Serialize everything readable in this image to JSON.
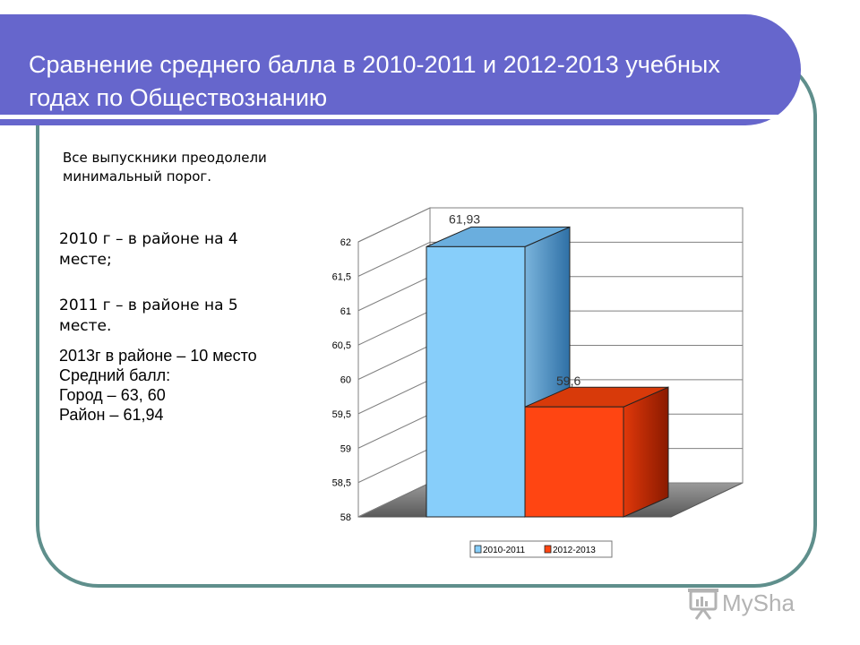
{
  "slide": {
    "title": "Сравнение среднего балла в 2010-2011 и 2012-2013 учебных годах по Обществознанию",
    "note": "Все выпускники преодолели минимальный порог.",
    "paragraph1": "2010 г – в районе на 4 месте;",
    "paragraph2": "2011 г – в районе на 5 месте.",
    "lines": [
      "2013г в районе – 10 место",
      "Средний балл:",
      "Город – 63, 60",
      "Район – 61,94"
    ]
  },
  "colors": {
    "title_bar": "#6666cc",
    "frame": "#5f8f8c",
    "series1": "#87cefa",
    "series2": "#ff4512"
  },
  "chart_data": {
    "type": "bar",
    "categories": [
      ""
    ],
    "series": [
      {
        "name": "2010-2011",
        "values": [
          61.93
        ],
        "label": "61,93"
      },
      {
        "name": "2012-2013",
        "values": [
          59.6
        ],
        "label": "59,6"
      }
    ],
    "ylim": [
      58,
      62
    ],
    "yticks": [
      "58",
      "58,5",
      "59",
      "59,5",
      "60",
      "60,5",
      "61",
      "61,5",
      "62"
    ],
    "grid": true,
    "legend_position": "bottom",
    "style": "3d"
  },
  "watermark": {
    "text": "MySha",
    "icon": "presentation-icon"
  }
}
